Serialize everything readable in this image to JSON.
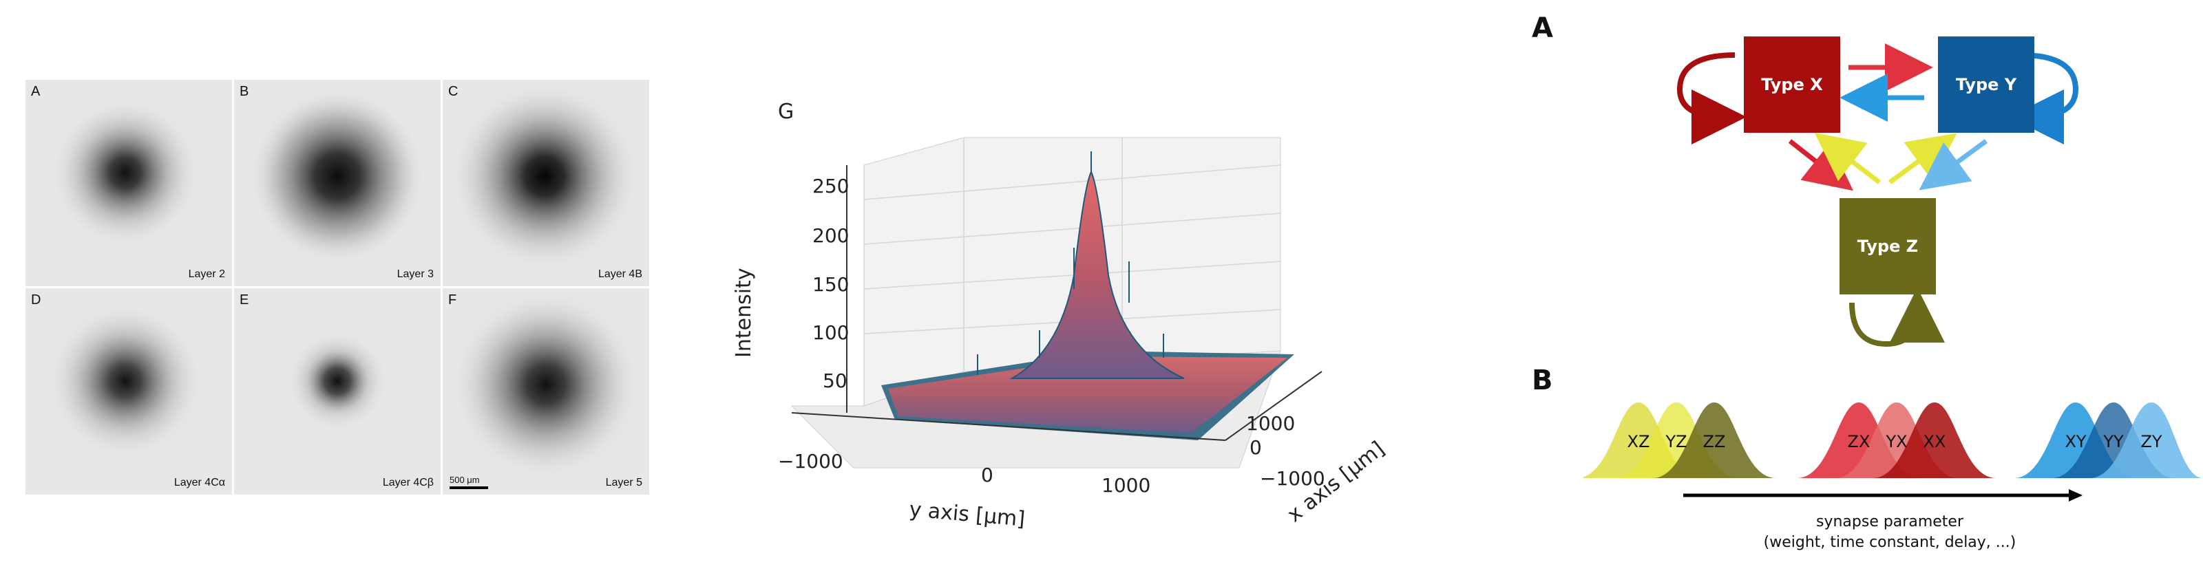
{
  "micrographs": {
    "panels": [
      {
        "letter": "A",
        "layer": "Layer 2"
      },
      {
        "letter": "B",
        "layer": "Layer 3"
      },
      {
        "letter": "C",
        "layer": "Layer 4B"
      },
      {
        "letter": "D",
        "layer": "Layer 4Cα"
      },
      {
        "letter": "E",
        "layer": "Layer 4Cβ"
      },
      {
        "letter": "F",
        "layer": "Layer 5"
      }
    ],
    "scale_bar_label": "500 μm"
  },
  "surface_plot": {
    "panel_letter": "G",
    "zlabel": "Intensity",
    "xlabel": "x axis [μm]",
    "ylabel": "y axis [μm]",
    "z_ticks": [
      "50",
      "100",
      "150",
      "200",
      "250"
    ],
    "y_ticks": [
      "−1000",
      "0",
      "1000"
    ],
    "x_ticks": [
      "−1000",
      "0",
      "1000"
    ]
  },
  "network_diagram": {
    "panel_letter": "A",
    "nodes": {
      "x": "Type X",
      "y": "Type Y",
      "z": "Type Z"
    },
    "colors": {
      "x": "#a80d0d",
      "y": "#0f5a99",
      "z": "#6b6a1a",
      "red_arrow": "#e0333f",
      "blue_arrow": "#2a9be0",
      "yellow_arrow": "#e6e63a",
      "lightblue_arrow": "#6bb8ec"
    }
  },
  "synapse_distributions": {
    "panel_letter": "B",
    "groups": [
      [
        "XZ",
        "YZ",
        "ZZ"
      ],
      [
        "ZX",
        "YX",
        "XX"
      ],
      [
        "XY",
        "YY",
        "ZY"
      ]
    ],
    "axis_label_line1": "synapse parameter",
    "axis_label_line2": "(weight, time constant, delay, ...)"
  }
}
